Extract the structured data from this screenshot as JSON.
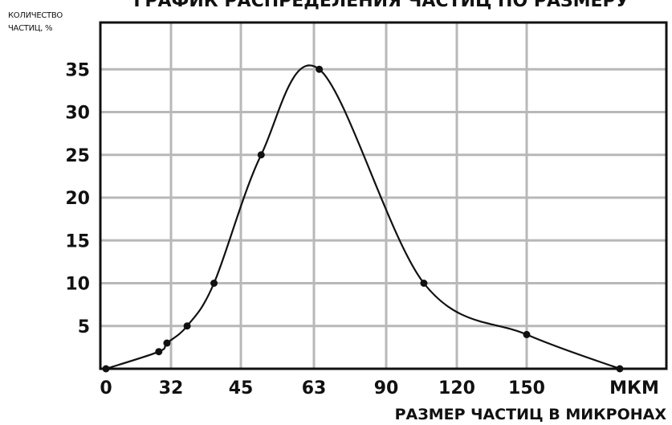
{
  "chart_data": {
    "type": "line",
    "title": "ГРАФИК РАСПРЕДЕЛЕНИЯ ЧАСТИЦ ПО РАЗМЕРУ",
    "ylabel_line1": "КОЛИЧЕСТВО",
    "ylabel_line2": "ЧАСТИЦ, %",
    "xlabel": "РАЗМЕР ЧАСТИЦ В МИКРОНАХ",
    "x_categories": [
      "0",
      "32",
      "45",
      "63",
      "90",
      "120",
      "150",
      "МКМ"
    ],
    "y_ticks": [
      5,
      10,
      15,
      20,
      25,
      30,
      35
    ],
    "ylim": [
      0,
      36
    ],
    "grid": true,
    "series": [
      {
        "points": [
          {
            "x": 0,
            "y": 0
          },
          {
            "x": 26,
            "y": 2
          },
          {
            "x": 30,
            "y": 3
          },
          {
            "x": 35,
            "y": 5
          },
          {
            "x": 40,
            "y": 10
          },
          {
            "x": 50,
            "y": 25
          },
          {
            "x": 65,
            "y": 35
          },
          {
            "x": 106,
            "y": 10
          },
          {
            "x": 150,
            "y": 4
          },
          {
            "x": 190,
            "y": 0
          }
        ]
      }
    ]
  }
}
